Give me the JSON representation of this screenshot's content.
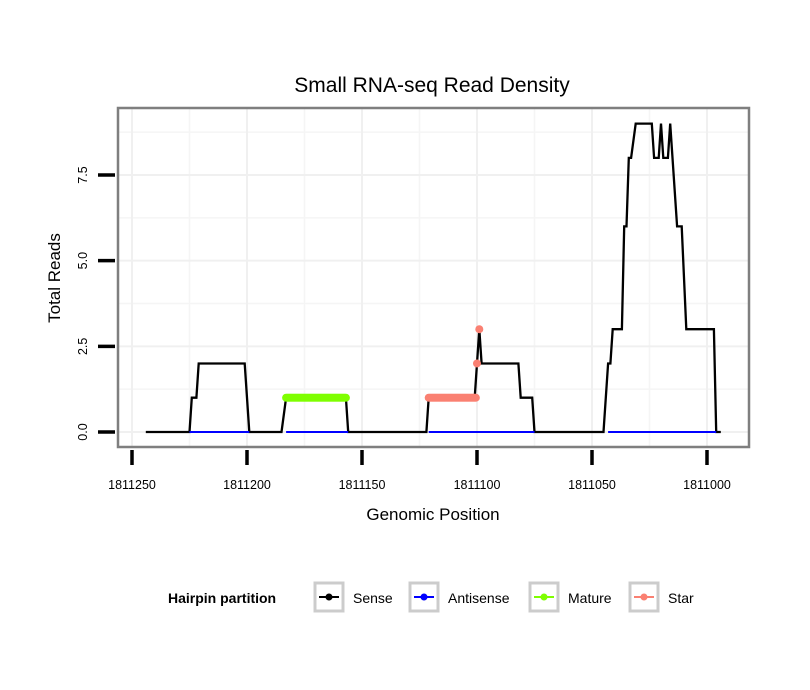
{
  "chart_data": {
    "type": "line",
    "title": "Small RNA-seq Read Density",
    "xlabel": "Genomic Position",
    "ylabel": "Total Reads",
    "x_reversed": true,
    "xlim": [
      1811256,
      1810981
    ],
    "ylim": [
      -0.5,
      9.5
    ],
    "x_ticks": [
      1811250,
      1811200,
      1811150,
      1811100,
      1811050,
      1811000
    ],
    "x_tick_labels": [
      "1811250",
      "1811200",
      "1811150",
      "1811100",
      "1811050",
      "1811000"
    ],
    "y_ticks": [
      0.0,
      2.5,
      5.0,
      7.5
    ],
    "y_tick_labels": [
      "0.0",
      "2.5",
      "5.0",
      "7.5"
    ],
    "x_minor_grid": [
      1811225,
      1811175,
      1811125,
      1811075,
      1811025
    ],
    "y_minor_grid": [
      1.25,
      3.75,
      6.25,
      8.75
    ],
    "grid": true,
    "legend": {
      "title": "Hairpin partition",
      "placement": "bottom",
      "entries": [
        {
          "name": "Sense",
          "color": "#000000"
        },
        {
          "name": "Antisense",
          "color": "#0000ff"
        },
        {
          "name": "Mature",
          "color": "#7fff00"
        },
        {
          "name": "Star",
          "color": "#fa8072"
        }
      ]
    },
    "series": [
      {
        "name": "Sense",
        "color": "#000000",
        "style": "line",
        "points": [
          [
            1811244,
            0
          ],
          [
            1811225,
            0
          ],
          [
            1811224,
            1
          ],
          [
            1811222,
            1
          ],
          [
            1811221,
            2
          ],
          [
            1811201,
            2
          ],
          [
            1811199,
            0
          ],
          [
            1811185,
            0
          ],
          [
            1811183,
            1
          ],
          [
            1811157,
            1
          ],
          [
            1811156,
            0
          ],
          [
            1811122,
            0
          ],
          [
            1811121,
            1
          ],
          [
            1811101,
            1
          ],
          [
            1811100,
            2
          ],
          [
            1811099,
            3
          ],
          [
            1811098,
            2
          ],
          [
            1811082,
            2
          ],
          [
            1811081,
            1
          ],
          [
            1811076,
            1
          ],
          [
            1811075,
            0
          ],
          [
            1811045,
            0
          ],
          [
            1811043,
            2
          ],
          [
            1811042,
            2
          ],
          [
            1811041,
            3
          ],
          [
            1811037,
            3
          ],
          [
            1811036,
            6
          ],
          [
            1811035,
            6
          ],
          [
            1811034,
            8
          ],
          [
            1811033,
            8
          ],
          [
            1811031,
            9
          ],
          [
            1811024,
            9
          ],
          [
            1811023,
            8
          ],
          [
            1811021,
            8
          ],
          [
            1811020,
            9
          ],
          [
            1811019,
            8
          ],
          [
            1811017,
            8
          ],
          [
            1811016,
            9
          ],
          [
            1811013,
            6
          ],
          [
            1811011,
            6
          ],
          [
            1811009,
            3
          ],
          [
            1810997,
            3
          ],
          [
            1810996,
            0
          ],
          [
            1810994,
            0
          ]
        ]
      },
      {
        "name": "Antisense",
        "color": "#0000ff",
        "style": "line",
        "points": [
          [
            1811225,
            0
          ],
          [
            1811199,
            0
          ],
          [
            1811183,
            0
          ],
          [
            1811156,
            0
          ],
          [
            1811121,
            0
          ],
          [
            1811075,
            0
          ],
          [
            1811043,
            0
          ],
          [
            1810996,
            0
          ]
        ]
      },
      {
        "name": "Mature",
        "color": "#7fff00",
        "style": "points",
        "x_range": [
          1811183,
          1811157
        ],
        "value": 1
      },
      {
        "name": "Star",
        "color": "#fa8072",
        "style": "points",
        "points": [
          [
            1811121,
            1
          ],
          [
            1811120,
            1
          ],
          [
            1811119,
            1
          ],
          [
            1811118,
            1
          ],
          [
            1811117,
            1
          ],
          [
            1811116,
            1
          ],
          [
            1811115,
            1
          ],
          [
            1811114,
            1
          ],
          [
            1811113,
            1
          ],
          [
            1811112,
            1
          ],
          [
            1811111,
            1
          ],
          [
            1811110,
            1
          ],
          [
            1811109,
            1
          ],
          [
            1811108,
            1
          ],
          [
            1811107,
            1
          ],
          [
            1811106,
            1
          ],
          [
            1811105,
            1
          ],
          [
            1811104,
            1
          ],
          [
            1811103,
            1
          ],
          [
            1811102,
            1
          ],
          [
            1811101,
            1
          ],
          [
            1811100,
            2
          ],
          [
            1811099,
            3
          ]
        ]
      }
    ]
  }
}
